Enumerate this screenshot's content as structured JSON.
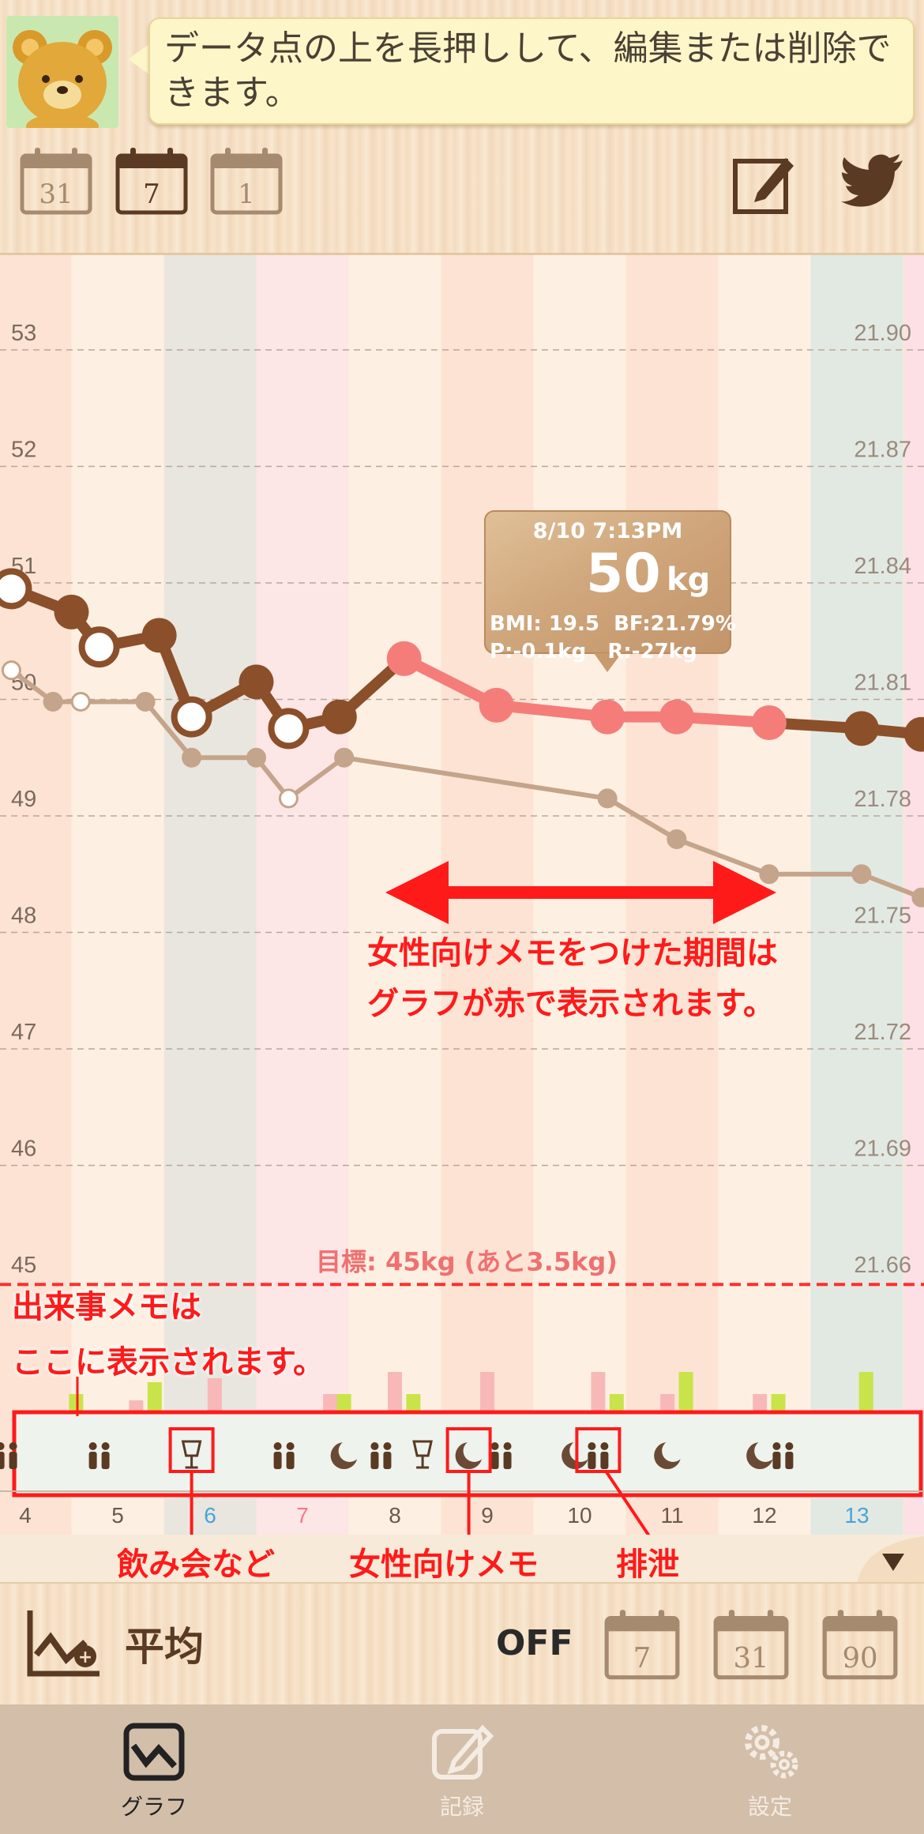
{
  "header": {
    "hint": "データ点の上を長押しして、編集または削除できます。",
    "range_buttons": [
      "31",
      "7",
      "1"
    ],
    "edit_icon": "edit-icon",
    "share_icon": "twitter-icon"
  },
  "chart_data": {
    "type": "line",
    "x": [
      "4",
      "5",
      "6",
      "7",
      "8",
      "9",
      "10",
      "11",
      "12",
      "13"
    ],
    "x_label_colors": {
      "6": "#4aa3d8",
      "7": "#f07c8c",
      "13": "#4aa3d8"
    },
    "y_left_ticks": [
      "53",
      "52",
      "51",
      "50",
      "49",
      "48",
      "47",
      "46",
      "45"
    ],
    "y_right_ticks": [
      "21.90",
      "21.87",
      "21.84",
      "21.81",
      "21.78",
      "21.75",
      "21.72",
      "21.69",
      "21.66"
    ],
    "ylim": [
      45,
      53
    ],
    "grid": true,
    "series": [
      {
        "points": [
          {
            "x": 3.85,
            "y": 50.95
          },
          {
            "x": 4.5,
            "y": 50.75
          },
          {
            "x": 4.8,
            "y": 50.45
          },
          {
            "x": 5.45,
            "y": 50.55
          },
          {
            "x": 5.8,
            "y": 49.85
          },
          {
            "x": 6.5,
            "y": 50.15
          },
          {
            "x": 6.85,
            "y": 49.75
          },
          {
            "x": 7.4,
            "y": 49.85
          },
          {
            "x": 8.1,
            "y": 50.35
          },
          {
            "x": 9.1,
            "y": 49.95
          },
          {
            "x": 10.3,
            "y": 49.85
          },
          {
            "x": 11.05,
            "y": 49.85
          },
          {
            "x": 12.05,
            "y": 49.8
          },
          {
            "x": 13.05,
            "y": 49.75
          },
          {
            "x": 13.7,
            "y": 49.7
          }
        ],
        "color": "#8b4f2a",
        "pink_range": [
          8.1,
          12.05
        ],
        "pink_color": "#f47d7a",
        "hollow": [
          0,
          2,
          4,
          6
        ]
      },
      {
        "points": [
          {
            "x": 3.85,
            "y": 50.25
          },
          {
            "x": 4.3,
            "y": 49.98
          },
          {
            "x": 4.6,
            "y": 49.98
          },
          {
            "x": 5.3,
            "y": 49.98
          },
          {
            "x": 5.8,
            "y": 49.5
          },
          {
            "x": 6.5,
            "y": 49.5
          },
          {
            "x": 6.85,
            "y": 49.15
          },
          {
            "x": 7.45,
            "y": 49.5
          },
          {
            "x": 10.3,
            "y": 49.15
          },
          {
            "x": 11.05,
            "y": 48.8
          },
          {
            "x": 12.05,
            "y": 48.5
          },
          {
            "x": 13.05,
            "y": 48.5
          },
          {
            "x": 13.7,
            "y": 48.3
          }
        ],
        "color": "#c4a48a",
        "hollow": [
          0,
          2,
          6
        ]
      }
    ],
    "goal": {
      "label": "目標: 45kg (あと3.5kg)",
      "value": 45.1
    }
  },
  "tooltip": {
    "datetime": "8/10 7:13PM",
    "weight": "50",
    "unit": "kg",
    "line1": "BMI: 19.5  BF:21.79%",
    "line2": "P:-0.1kg   R:-27kg"
  },
  "memo_row": {
    "icons": [
      "couple-icon",
      "couple-icon",
      "wine-glass-icon",
      "couple-icon",
      "moon-icon",
      "couple-icon",
      "wine-glass-icon",
      "moon-icon",
      "couple-icon",
      "moon-icon",
      "couple-icon",
      "moon-icon",
      "moon-icon",
      "couple-icon"
    ]
  },
  "annotations": {
    "period_note_line1": "女性向けメモをつけた期間は",
    "period_note_line2": "グラフが赤で表示されます。",
    "event_note_line1": "出来事メモは",
    "event_note_line2": "ここに表示されます。",
    "drinks": "飲み会など",
    "female_memo": "女性向けメモ",
    "excretion": "排泄"
  },
  "avg_bar": {
    "label": "平均",
    "state": "OFF",
    "periods": [
      "7",
      "31",
      "90"
    ]
  },
  "tabs": [
    {
      "label": "グラフ",
      "icon": "graph-icon"
    },
    {
      "label": "記録",
      "icon": "edit-icon"
    },
    {
      "label": "設定",
      "icon": "gear-icon"
    }
  ],
  "colors": {
    "accent_brown": "#8b4f2a",
    "female_pink": "#f47d7a",
    "annotation_red": "#ff1a1a"
  }
}
